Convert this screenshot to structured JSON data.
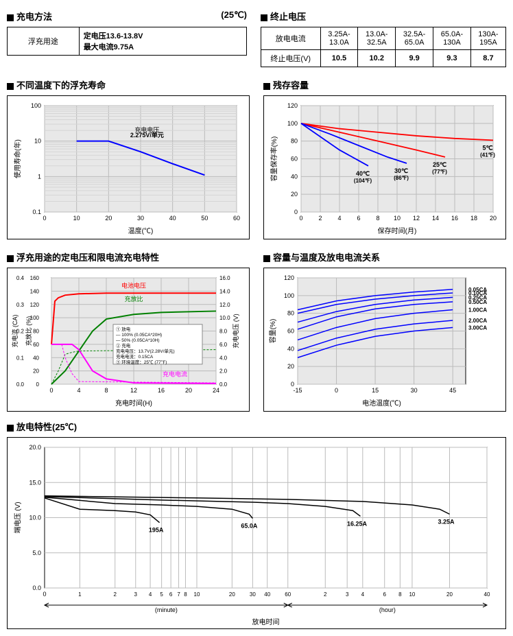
{
  "titles": {
    "charging_method": "充电方法",
    "temp_25c": "(25℃)",
    "float_use": "浮充用途",
    "const_voltage": "定电压13.6-13.8V",
    "max_current": "最大电流9.75A",
    "cutoff_voltage": "终止电压",
    "discharge_current": "放电电流",
    "cutoff_voltage_v": "终止电压(V)",
    "float_life_temp": "不同温度下的浮充寿命",
    "residual_capacity": "残存容量",
    "float_cv_cc": "浮充用途的定电压和限电流充电特性",
    "capacity_temp_current": "容量与温度及放电电流关系",
    "discharge_char": "放电特性(25℃)"
  },
  "cutoff_table": {
    "headers": [
      "3.25A-\n13.0A",
      "13.0A-\n32.5A",
      "32.5A-\n65.0A",
      "65.0A-\n130A",
      "130A-\n195A"
    ],
    "values": [
      "10.5",
      "10.2",
      "9.9",
      "9.3",
      "8.7"
    ]
  },
  "chart_life": {
    "type": "line",
    "xlabel": "温度(℃)",
    "ylabel": "使用寿命(年)",
    "xlim": [
      0,
      60
    ],
    "xtick_step": 10,
    "ylog": true,
    "ylim": [
      0.1,
      100
    ],
    "yticks": [
      0.1,
      1,
      10,
      100
    ],
    "line_color": "#0000ff",
    "line_width": 2,
    "bg": "#e8e8e8",
    "grid": "#bbbbbb",
    "label_text1": "充电电压",
    "label_text2": "2.275V/单元",
    "data": [
      [
        10,
        10
      ],
      [
        20,
        10
      ],
      [
        30,
        5
      ],
      [
        40,
        2.3
      ],
      [
        50,
        1.1
      ]
    ]
  },
  "chart_residual": {
    "type": "line",
    "xlabel": "保存时间(月)",
    "ylabel": "容量保存率(%)",
    "xlim": [
      0,
      20
    ],
    "xtick_step": 2,
    "ylim": [
      0,
      120
    ],
    "ytick_step": 20,
    "bg": "#e8e8e8",
    "grid": "#bbbbbb",
    "series": [
      {
        "label": "5℃",
        "sub": "(41℉)",
        "color": "#ff0000",
        "data": [
          [
            0,
            100
          ],
          [
            4,
            94
          ],
          [
            8,
            90
          ],
          [
            12,
            86
          ],
          [
            16,
            83
          ],
          [
            20,
            81
          ]
        ]
      },
      {
        "label": "25℃",
        "sub": "(77℉)",
        "color": "#ff0000",
        "data": [
          [
            0,
            100
          ],
          [
            4,
            90
          ],
          [
            8,
            80
          ],
          [
            12,
            70
          ],
          [
            15,
            62
          ]
        ]
      },
      {
        "label": "30℃",
        "sub": "(86℉)",
        "color": "#0000ff",
        "data": [
          [
            0,
            100
          ],
          [
            3,
            88
          ],
          [
            6,
            75
          ],
          [
            9,
            62
          ],
          [
            11,
            55
          ]
        ]
      },
      {
        "label": "40℃",
        "sub": "(104℉)",
        "color": "#0000ff",
        "data": [
          [
            0,
            100
          ],
          [
            2,
            85
          ],
          [
            4,
            70
          ],
          [
            6,
            58
          ],
          [
            7,
            52
          ]
        ]
      }
    ]
  },
  "chart_cvcc": {
    "type": "multi-axis",
    "xlabel": "充电时间(H)",
    "ylabel_left": "充电流 (CA)",
    "ylabel_left2": "充放比 (%)",
    "ylabel_right": "充电电压 (V)",
    "xlim": [
      0,
      24
    ],
    "xtick_step": 4,
    "ylim_ca": [
      0,
      0.4
    ],
    "ytick_ca": 0.1,
    "ylim_pct": [
      0,
      160
    ],
    "ytick_pct": 20,
    "ylim_v": [
      0,
      16
    ],
    "ytick_v": 2,
    "bg": "#e8e8e8",
    "grid": "#bbbbbb",
    "legend": {
      "battery_voltage": "电池电压",
      "charge_ratio": "充放比",
      "charge_current": "充电电流",
      "discharge_cond": "① 放电",
      "d100": "— 100% (0.05CA*20H)",
      "d50": "— 50% (0.05CA*10H)",
      "charge_cond": "② 充电",
      "cv": "充电电压：13.7V(2.28V/单元)",
      "cc": "充电电流：0.15CA",
      "ambient": "③ 环境温度：25℃ (77℉)"
    },
    "voltage": {
      "color": "#ff0000",
      "width": 2,
      "data": [
        [
          0,
          6
        ],
        [
          0.5,
          12.5
        ],
        [
          1,
          13.0
        ],
        [
          2,
          13.4
        ],
        [
          4,
          13.6
        ],
        [
          8,
          13.7
        ],
        [
          24,
          13.7
        ]
      ]
    },
    "ratio100": {
      "color": "#008000",
      "width": 2,
      "data": [
        [
          0,
          0
        ],
        [
          2,
          20
        ],
        [
          4,
          50
        ],
        [
          6,
          80
        ],
        [
          8,
          98
        ],
        [
          12,
          105
        ],
        [
          16,
          108
        ],
        [
          24,
          110
        ]
      ]
    },
    "ratio50": {
      "color": "#008000",
      "width": 1,
      "dash": "3,2",
      "data": [
        [
          0,
          0
        ],
        [
          1,
          20
        ],
        [
          2,
          45
        ],
        [
          3,
          48
        ],
        [
          4,
          50
        ],
        [
          24,
          52
        ]
      ]
    },
    "current": {
      "color": "#ff00ff",
      "width": 2,
      "data": [
        [
          0,
          0.15
        ],
        [
          3,
          0.15
        ],
        [
          4,
          0.13
        ],
        [
          5,
          0.09
        ],
        [
          6,
          0.05
        ],
        [
          8,
          0.02
        ],
        [
          12,
          0.005
        ],
        [
          24,
          0.003
        ]
      ]
    },
    "current50": {
      "color": "#ff00ff",
      "width": 1,
      "dash": "3,2",
      "data": [
        [
          0,
          0.15
        ],
        [
          1.5,
          0.15
        ],
        [
          2,
          0.1
        ],
        [
          3,
          0.04
        ],
        [
          4,
          0.01
        ],
        [
          24,
          0.005
        ]
      ]
    }
  },
  "chart_captemp": {
    "type": "line",
    "xlabel": "电池温度(℃)",
    "ylabel": "容量(%)",
    "xlim": [
      -15,
      50
    ],
    "xticks": [
      -15,
      0,
      15,
      30,
      45
    ],
    "ylim": [
      0,
      120
    ],
    "ytick_step": 20,
    "bg": "#e8e8e8",
    "grid": "#bbbbbb",
    "color": "#0000ff",
    "width": 1.5,
    "series": [
      {
        "label": "0.05CA",
        "data": [
          [
            -15,
            84
          ],
          [
            0,
            94
          ],
          [
            15,
            100
          ],
          [
            30,
            104
          ],
          [
            45,
            107
          ]
        ]
      },
      {
        "label": "0.10CA",
        "data": [
          [
            -15,
            80
          ],
          [
            0,
            90
          ],
          [
            15,
            96
          ],
          [
            30,
            100
          ],
          [
            45,
            103
          ]
        ]
      },
      {
        "label": "0.25CA",
        "data": [
          [
            -15,
            70
          ],
          [
            0,
            82
          ],
          [
            15,
            90
          ],
          [
            30,
            95
          ],
          [
            45,
            98
          ]
        ]
      },
      {
        "label": "0.50CA",
        "data": [
          [
            -15,
            62
          ],
          [
            0,
            76
          ],
          [
            15,
            85
          ],
          [
            30,
            90
          ],
          [
            45,
            93
          ]
        ]
      },
      {
        "label": "1.00CA",
        "data": [
          [
            -15,
            50
          ],
          [
            0,
            64
          ],
          [
            15,
            74
          ],
          [
            30,
            80
          ],
          [
            45,
            84
          ]
        ]
      },
      {
        "label": "2.00CA",
        "data": [
          [
            -15,
            38
          ],
          [
            0,
            52
          ],
          [
            15,
            62
          ],
          [
            30,
            68
          ],
          [
            45,
            72
          ]
        ]
      },
      {
        "label": "3.00CA",
        "data": [
          [
            -15,
            30
          ],
          [
            0,
            44
          ],
          [
            15,
            54
          ],
          [
            30,
            60
          ],
          [
            45,
            64
          ]
        ]
      }
    ]
  },
  "chart_discharge": {
    "type": "log-time",
    "xlabel": "放电时间",
    "ylabel": "端电压 (V)",
    "xlabel_min": "(minute)",
    "xlabel_hr": "(hour)",
    "ylim": [
      0,
      20
    ],
    "ytick_step": 5,
    "bg": "#ffffff",
    "grid": "#bbbbbb",
    "color": "#000000",
    "width": 1.5,
    "minute_ticks": [
      0,
      1,
      2,
      3,
      4,
      5,
      6,
      7,
      8,
      10,
      20,
      30,
      40,
      60
    ],
    "hour_ticks": [
      2,
      3,
      4,
      6,
      8,
      10,
      20,
      40
    ],
    "series": [
      {
        "label": "195A",
        "end_min": 5,
        "data": [
          [
            0.1,
            12.8
          ],
          [
            1,
            11.2
          ],
          [
            2,
            11.0
          ],
          [
            3,
            10.8
          ],
          [
            4,
            10.4
          ],
          [
            4.8,
            9.3
          ]
        ]
      },
      {
        "label": "65.0A",
        "end_min": 30,
        "data": [
          [
            0.1,
            12.9
          ],
          [
            2,
            12.0
          ],
          [
            5,
            11.8
          ],
          [
            10,
            11.6
          ],
          [
            20,
            11.2
          ],
          [
            28,
            10.5
          ],
          [
            30,
            9.9
          ]
        ]
      },
      {
        "label": "16.25A",
        "end_hr": 4,
        "data": [
          [
            0.1,
            13.0
          ],
          [
            5,
            12.5
          ],
          [
            30,
            12.2
          ],
          [
            60,
            12.0
          ],
          [
            120,
            11.6
          ],
          [
            200,
            11.0
          ],
          [
            230,
            10.2
          ]
        ]
      },
      {
        "label": "3.25A",
        "end_hr": 20,
        "data": [
          [
            0.1,
            13.1
          ],
          [
            10,
            12.8
          ],
          [
            60,
            12.6
          ],
          [
            240,
            12.3
          ],
          [
            600,
            11.8
          ],
          [
            1000,
            11.2
          ],
          [
            1200,
            10.5
          ]
        ]
      }
    ]
  }
}
